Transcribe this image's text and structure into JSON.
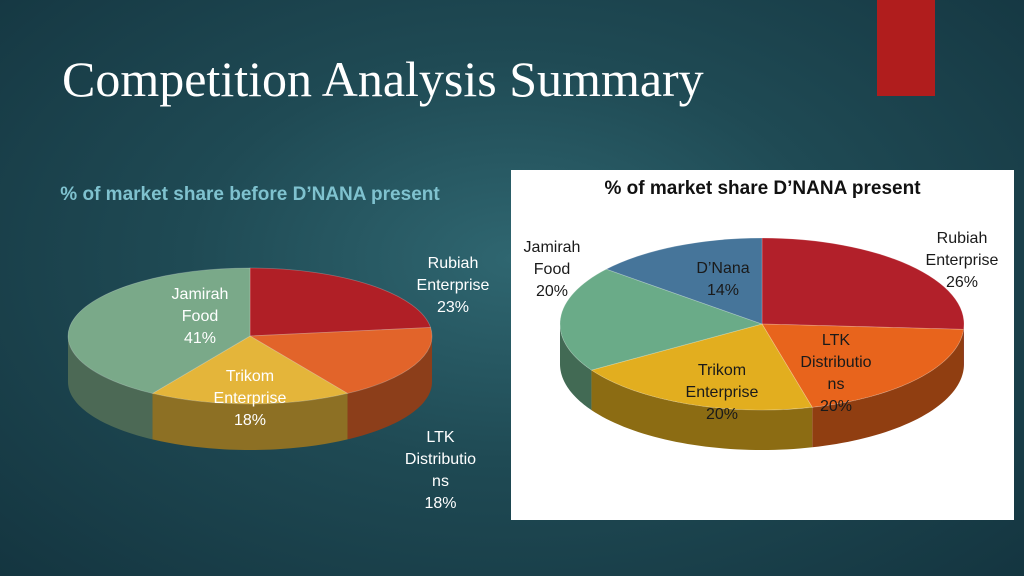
{
  "slide": {
    "title": "Competition Analysis Summary"
  },
  "chart_data": [
    {
      "type": "pie",
      "title": "% of market share before D’NANA present",
      "slices": [
        {
          "name": "Rubiah Enterprise",
          "value": 23,
          "label": [
            "Rubiah",
            "Enterprise",
            "23%"
          ],
          "color": "#b01f26"
        },
        {
          "name": "LTK Distributions",
          "value": 18,
          "label": [
            "LTK",
            "Distributio",
            "ns",
            "18%"
          ],
          "color": "#e2642a"
        },
        {
          "name": "Trikom Enterprise",
          "value": 18,
          "label": [
            "Trikom",
            "Enterprise",
            "18%"
          ],
          "color": "#e4b53a"
        },
        {
          "name": "Jamirah Food",
          "value": 41,
          "label": [
            "Jamirah",
            "Food",
            "41%"
          ],
          "color": "#7aa989"
        }
      ]
    },
    {
      "type": "pie",
      "title": "% of market share D’NANA present",
      "slices": [
        {
          "name": "Rubiah Enterprise",
          "value": 26,
          "label": [
            "Rubiah",
            "Enterprise",
            "26%"
          ],
          "color": "#b2202a"
        },
        {
          "name": "LTK Distributions",
          "value": 20,
          "label": [
            "LTK",
            "Distributio",
            "ns",
            "20%"
          ],
          "color": "#e8641c"
        },
        {
          "name": "Trikom Enterprise",
          "value": 20,
          "label": [
            "Trikom",
            "Enterprise",
            "20%"
          ],
          "color": "#e2ae1f"
        },
        {
          "name": "Jamirah Food",
          "value": 20,
          "label": [
            "Jamirah",
            "Food",
            "20%"
          ],
          "color": "#6aab88"
        },
        {
          "name": "D’Nana",
          "value": 14,
          "label": [
            "D’Nana",
            "14%"
          ],
          "color": "#46759a"
        }
      ]
    }
  ]
}
